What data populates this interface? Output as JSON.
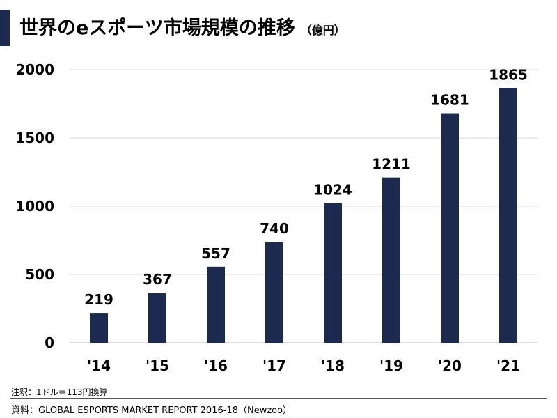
{
  "header": {
    "title": "世界のeスポーツ市場規模の推移",
    "unit": "（億円）"
  },
  "footer": {
    "note": "注釈：1ドル＝113円換算",
    "source": "資料：GLOBAL ESPORTS MARKET REPORT 2016-18（Newzoo）"
  },
  "colors": {
    "bar": "#1b2a4e",
    "grid": "#d9d9d9",
    "accent": "#1b2a4e"
  },
  "chart_data": {
    "type": "bar",
    "title": "世界のeスポーツ市場規模の推移",
    "unit": "（億円）",
    "categories": [
      "'14",
      "'15",
      "'16",
      "'17",
      "'18",
      "'19",
      "'20",
      "'21"
    ],
    "values": [
      219,
      367,
      557,
      740,
      1024,
      1211,
      1681,
      1865
    ],
    "data_labels": [
      "219",
      "367",
      "557",
      "740",
      "1024",
      "1211",
      "1681",
      "1865"
    ],
    "y_ticks": [
      0,
      500,
      1000,
      1500,
      2000
    ],
    "y_tick_labels": [
      "0",
      "500",
      "1000",
      "1500",
      "2000"
    ],
    "ylim": [
      0,
      2000
    ],
    "grid": true,
    "legend": "none"
  }
}
